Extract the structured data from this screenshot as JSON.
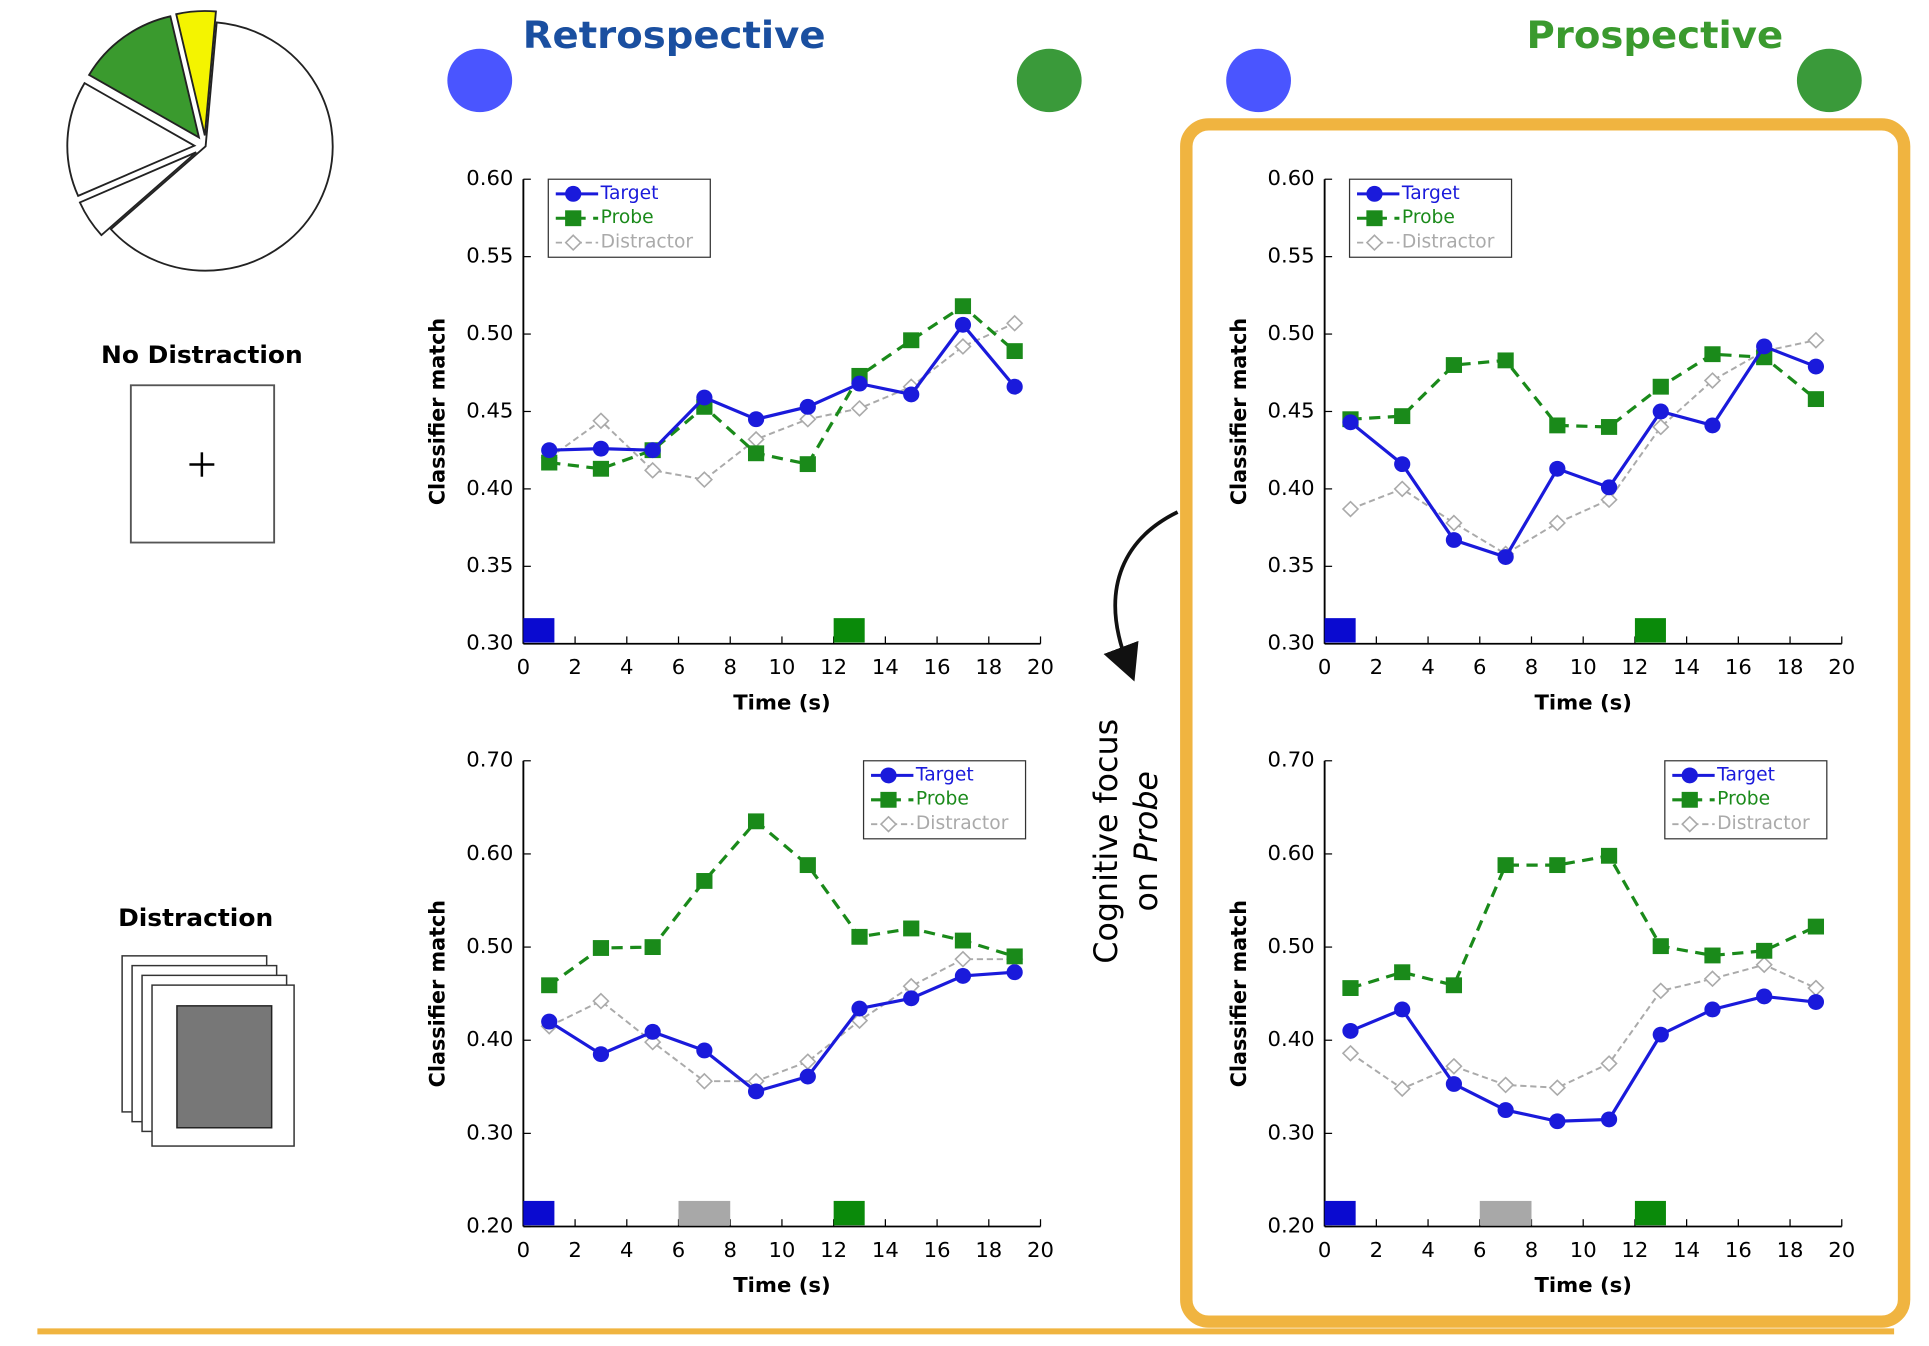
{
  "header": {
    "retrospective": "Retrospective",
    "prospective": "Prospective"
  },
  "conditions": {
    "no_distraction": "No Distraction",
    "distraction": "Distraction"
  },
  "annotation": {
    "line1": "Cognitive focus",
    "line2": "on",
    "emphasis": "Probe"
  },
  "chart_data": [
    {
      "type": "pie",
      "values": [
        62,
        5,
        15,
        13,
        5
      ],
      "colors": [
        "#ffffff",
        "#ffffff",
        "#ffffff",
        "#3a9a2e",
        "#f4f400"
      ]
    },
    {
      "type": "line",
      "xlabel": "Time (s)",
      "ylabel": "Classifier match",
      "legend": "upper left",
      "x": [
        1,
        3,
        5,
        7,
        9,
        11,
        13,
        15,
        17,
        19
      ],
      "xlim": [
        0,
        20
      ],
      "xticks": [
        0,
        2,
        4,
        6,
        8,
        10,
        12,
        14,
        16,
        18,
        20
      ],
      "ylim": [
        0.3,
        0.6
      ],
      "yticks": [
        {
          "value": 0.3,
          "label": "0.30"
        },
        0.35,
        {
          "value": 0.4,
          "label": "0.40"
        },
        0.45,
        {
          "value": 0.5,
          "label": "0.50"
        },
        0.55,
        {
          "value": 0.6,
          "label": "0.60"
        }
      ],
      "series": [
        {
          "name": "Target",
          "color": "#1a1adb",
          "values": [
            0.425,
            0.426,
            0.425,
            0.459,
            0.445,
            0.453,
            0.468,
            0.461,
            0.506,
            0.466
          ]
        },
        {
          "name": "Probe",
          "color": "#1a8a1a",
          "values": [
            0.417,
            0.413,
            0.425,
            0.453,
            0.423,
            0.416,
            0.473,
            0.496,
            0.518,
            0.489
          ]
        },
        {
          "name": "Distractor",
          "color": "#aaaaaa",
          "values": [
            0.42,
            0.444,
            0.412,
            0.406,
            0.432,
            0.445,
            0.452,
            0.466,
            0.492,
            0.507
          ]
        }
      ],
      "events": [
        {
          "start": 0,
          "end": 1.2,
          "color": "#0a0ad0"
        },
        {
          "start": 12,
          "end": 13.2,
          "color": "#0a8a0a"
        }
      ]
    },
    {
      "type": "line",
      "xlabel": "Time (s)",
      "ylabel": "Classifier match",
      "legend": "upper left",
      "x": [
        1,
        3,
        5,
        7,
        9,
        11,
        13,
        15,
        17,
        19
      ],
      "xlim": [
        0,
        20
      ],
      "xticks": [
        0,
        2,
        4,
        6,
        8,
        10,
        12,
        14,
        16,
        18,
        20
      ],
      "ylim": [
        0.3,
        0.6
      ],
      "yticks": [
        {
          "value": 0.3,
          "label": "0.30"
        },
        0.35,
        {
          "value": 0.4,
          "label": "0.40"
        },
        0.45,
        {
          "value": 0.5,
          "label": "0.50"
        },
        0.55,
        {
          "value": 0.6,
          "label": "0.60"
        }
      ],
      "series": [
        {
          "name": "Target",
          "color": "#1a1adb",
          "values": [
            0.443,
            0.416,
            0.367,
            0.356,
            0.413,
            0.401,
            0.45,
            0.441,
            0.492,
            0.479
          ]
        },
        {
          "name": "Probe",
          "color": "#1a8a1a",
          "values": [
            0.445,
            0.447,
            0.48,
            0.483,
            0.441,
            0.44,
            0.466,
            0.487,
            0.485,
            0.458
          ]
        },
        {
          "name": "Distractor",
          "color": "#aaaaaa",
          "values": [
            0.387,
            0.4,
            0.378,
            0.358,
            0.378,
            0.393,
            0.44,
            0.47,
            0.489,
            0.496
          ]
        }
      ],
      "events": [
        {
          "start": 0,
          "end": 1.2,
          "color": "#0a0ad0"
        },
        {
          "start": 12,
          "end": 13.2,
          "color": "#0a8a0a"
        }
      ]
    },
    {
      "type": "line",
      "xlabel": "Time (s)",
      "ylabel": "Classifier match",
      "legend": "upper right",
      "x": [
        1,
        3,
        5,
        7,
        9,
        11,
        13,
        15,
        17,
        19
      ],
      "xlim": [
        0,
        20
      ],
      "xticks": [
        0,
        2,
        4,
        6,
        8,
        10,
        12,
        14,
        16,
        18,
        20
      ],
      "ylim": [
        0.2,
        0.7
      ],
      "yticks": [
        {
          "value": 0.2,
          "label": "0.20"
        },
        {
          "value": 0.3,
          "label": "0.30"
        },
        {
          "value": 0.4,
          "label": "0.40"
        },
        {
          "value": 0.5,
          "label": "0.50"
        },
        {
          "value": 0.6,
          "label": "0.60"
        },
        {
          "value": 0.7,
          "label": "0.70"
        }
      ],
      "series": [
        {
          "name": "Target",
          "color": "#1a1adb",
          "values": [
            0.42,
            0.385,
            0.409,
            0.389,
            0.345,
            0.361,
            0.434,
            0.445,
            0.469,
            0.473
          ]
        },
        {
          "name": "Probe",
          "color": "#1a8a1a",
          "values": [
            0.459,
            0.499,
            0.5,
            0.571,
            0.635,
            0.588,
            0.511,
            0.52,
            0.507,
            0.49
          ]
        },
        {
          "name": "Distractor",
          "color": "#aaaaaa",
          "values": [
            0.415,
            0.442,
            0.398,
            0.356,
            0.356,
            0.377,
            0.421,
            0.458,
            0.487,
            0.487
          ]
        }
      ],
      "events": [
        {
          "start": 0,
          "end": 1.2,
          "color": "#0a0ad0"
        },
        {
          "start": 6,
          "end": 8,
          "color": "#a8a8a8"
        },
        {
          "start": 12,
          "end": 13.2,
          "color": "#0a8a0a"
        }
      ]
    },
    {
      "type": "line",
      "xlabel": "Time (s)",
      "ylabel": "Classifier match",
      "legend": "upper right",
      "x": [
        1,
        3,
        5,
        7,
        9,
        11,
        13,
        15,
        17,
        19
      ],
      "xlim": [
        0,
        20
      ],
      "xticks": [
        0,
        2,
        4,
        6,
        8,
        10,
        12,
        14,
        16,
        18,
        20
      ],
      "ylim": [
        0.2,
        0.7
      ],
      "yticks": [
        {
          "value": 0.2,
          "label": "0.20"
        },
        {
          "value": 0.3,
          "label": "0.30"
        },
        {
          "value": 0.4,
          "label": "0.40"
        },
        {
          "value": 0.5,
          "label": "0.50"
        },
        {
          "value": 0.6,
          "label": "0.60"
        },
        {
          "value": 0.7,
          "label": "0.70"
        }
      ],
      "series": [
        {
          "name": "Target",
          "color": "#1a1adb",
          "values": [
            0.41,
            0.433,
            0.353,
            0.325,
            0.313,
            0.315,
            0.406,
            0.433,
            0.447,
            0.441
          ]
        },
        {
          "name": "Probe",
          "color": "#1a8a1a",
          "values": [
            0.456,
            0.473,
            0.459,
            0.588,
            0.588,
            0.598,
            0.501,
            0.491,
            0.496,
            0.522
          ]
        },
        {
          "name": "Distractor",
          "color": "#aaaaaa",
          "values": [
            0.386,
            0.348,
            0.372,
            0.352,
            0.349,
            0.375,
            0.453,
            0.466,
            0.481,
            0.456
          ]
        }
      ],
      "events": [
        {
          "start": 0,
          "end": 1.2,
          "color": "#0a0ad0"
        },
        {
          "start": 6,
          "end": 8,
          "color": "#a8a8a8"
        },
        {
          "start": 12,
          "end": 13.2,
          "color": "#0a8a0a"
        }
      ]
    }
  ]
}
